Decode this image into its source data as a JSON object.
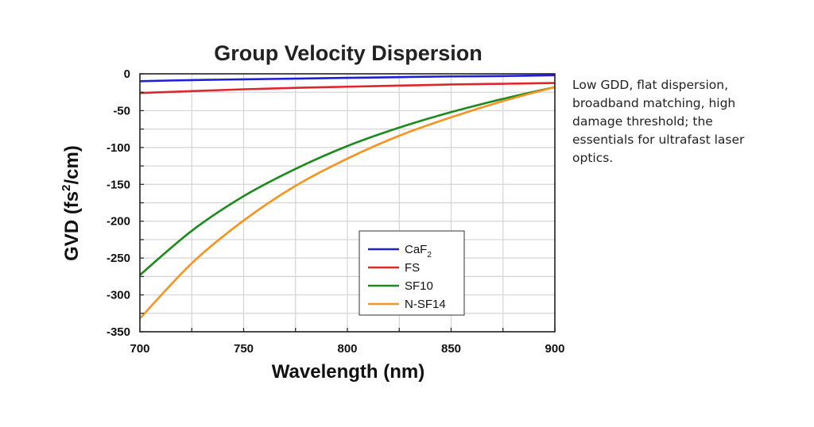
{
  "caption": "Low GDD, flat dispersion, broadband matching, high damage threshold; the essentials for ultrafast laser optics.",
  "chart_data": {
    "type": "line",
    "title": "Group Velocity Dispersion",
    "xlabel": "Wavelength (nm)",
    "ylabel_main": "GVD (fs",
    "ylabel_sup": "2",
    "ylabel_tail": "/cm)",
    "xlim": [
      700,
      900
    ],
    "ylim": [
      -350,
      0
    ],
    "xticks": [
      700,
      750,
      800,
      850,
      900
    ],
    "yticks": [
      0,
      -50,
      -100,
      -150,
      -200,
      -250,
      -300,
      -350
    ],
    "grid": true,
    "legend_position": "bottom-right",
    "x": [
      700,
      725,
      750,
      775,
      800,
      825,
      850,
      875,
      900
    ],
    "series": [
      {
        "name": "CaF",
        "name_sub": "2",
        "color": "#1f1fd6",
        "values": [
          -10,
          -8.5,
          -7.5,
          -6.5,
          -5.5,
          -4.5,
          -3.5,
          -3,
          -2
        ]
      },
      {
        "name": "FS",
        "color": "#e0262b",
        "values": [
          -26,
          -23.5,
          -21,
          -19,
          -17.5,
          -16,
          -14.5,
          -13.5,
          -12.5
        ]
      },
      {
        "name": "SF10",
        "color": "#1d8a1d",
        "values": [
          -273,
          -213,
          -166,
          -129,
          -98,
          -73,
          -52,
          -34,
          -18
        ]
      },
      {
        "name": "N-SF14",
        "color": "#f7931e",
        "values": [
          -332,
          -257,
          -199,
          -152,
          -115,
          -84,
          -59,
          -37,
          -18
        ]
      }
    ]
  }
}
